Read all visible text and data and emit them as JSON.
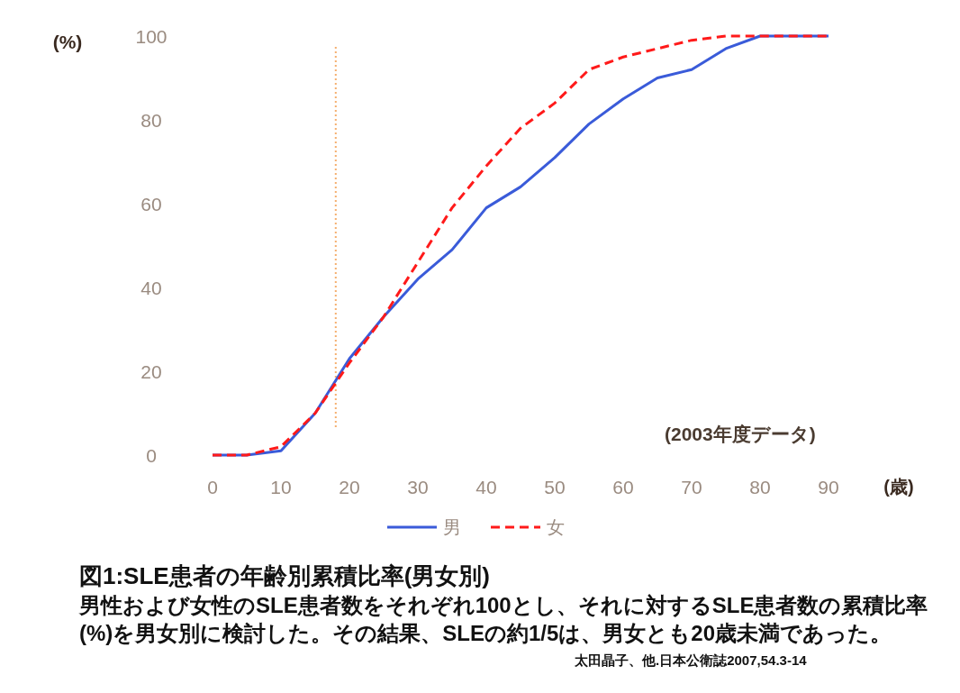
{
  "chart_data": {
    "type": "line",
    "title": "図1:SLE患者の年齢別累積比率(男女別)",
    "xlabel": "(歳)",
    "ylabel": "(%)",
    "x": [
      0,
      5,
      10,
      15,
      20,
      25,
      30,
      35,
      40,
      45,
      50,
      55,
      60,
      65,
      70,
      75,
      80,
      90
    ],
    "series": [
      {
        "name": "男",
        "color": "#3a5bd9",
        "line_style": "solid",
        "values": [
          0,
          0,
          1,
          10,
          23,
          33,
          42,
          49,
          59,
          64,
          71,
          79,
          85,
          90,
          92,
          97,
          100,
          100
        ]
      },
      {
        "name": "女",
        "color": "#ff1a1a",
        "line_style": "dashed",
        "values": [
          0,
          0,
          2,
          10,
          22,
          33,
          46,
          59,
          69,
          78,
          84,
          92,
          95,
          97,
          99,
          100,
          100,
          100
        ]
      }
    ],
    "xlim": [
      0,
      90
    ],
    "ylim": [
      0,
      100
    ],
    "xticks": [
      0,
      10,
      20,
      30,
      40,
      50,
      60,
      70,
      80,
      90
    ],
    "yticks": [
      0,
      20,
      40,
      60,
      80,
      100
    ],
    "ref_lines": [
      {
        "axis": "x",
        "value": 18,
        "color": "#f5b070",
        "line_style": "dotted"
      }
    ],
    "grid": false,
    "legend": "bottom",
    "marker": "none",
    "annotations": [
      "(2003年度データ)",
      "男性および女性のSLE患者数をそれぞれ100とし、それに対するSLE患者数の累積比率(%)を男女別に検討した。その結果、SLEの約1/5は、男女とも20歳未満であった。",
      "太田晶子、他.日本公衛誌2007,54.3-14"
    ]
  }
}
